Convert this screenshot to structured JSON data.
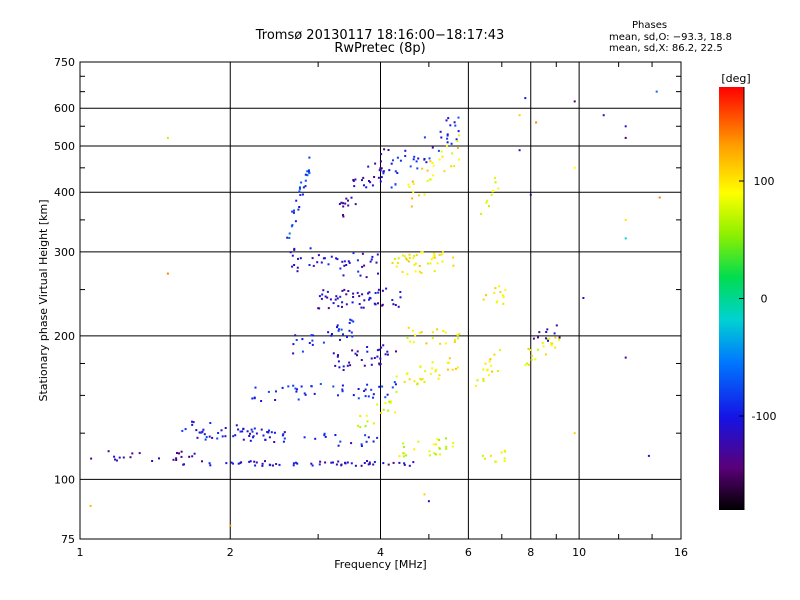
{
  "chart_data": {
    "type": "scatter",
    "title": "Tromsø 20130117 18:16:00−18:17:43",
    "subtitle": "RwPretec (8p)",
    "xlabel": "Frequency [MHz]",
    "ylabel": "Stationary phase Virtual Height [km]",
    "xscale": "log",
    "yscale": "log",
    "xlim": [
      1,
      16
    ],
    "ylim": [
      75,
      750
    ],
    "x_ticks": [
      1,
      2,
      4,
      6,
      8,
      10,
      16
    ],
    "y_ticks": [
      75,
      100,
      200,
      300,
      400,
      500,
      600,
      750
    ],
    "grid": true,
    "colorbar": {
      "label": "[deg]",
      "range": [
        -180,
        180
      ],
      "ticks": [
        100,
        0,
        -100
      ]
    },
    "phase_stats": {
      "heading": "Phases",
      "line_o": "mean, sd,O: −93.3, 18.8",
      "line_x": "mean, sd,X: 86.2, 22.5"
    },
    "traces": [
      {
        "x0": 1.05,
        "x1": 1.7,
        "y": 112,
        "y2": 112,
        "phase": -130,
        "density": 22,
        "spread": 0.03
      },
      {
        "x0": 1.6,
        "x1": 4.7,
        "y": 108,
        "y2": 108,
        "phase": -115,
        "density": 60,
        "spread": 0.012
      },
      {
        "x0": 1.6,
        "x1": 2.4,
        "y": 130,
        "y2": 124,
        "phase": -105,
        "density": 30,
        "spread": 0.035
      },
      {
        "x0": 1.7,
        "x1": 4.0,
        "y": 125,
        "y2": 120,
        "phase": -100,
        "density": 45,
        "spread": 0.03
      },
      {
        "x0": 2.2,
        "x1": 4.3,
        "y": 150,
        "y2": 155,
        "phase": -90,
        "density": 45,
        "spread": 0.04
      },
      {
        "x0": 2.6,
        "x1": 3.6,
        "y": 190,
        "y2": 210,
        "phase": -100,
        "density": 30,
        "spread": 0.05
      },
      {
        "x0": 3.0,
        "x1": 4.5,
        "y": 240,
        "y2": 240,
        "phase": -115,
        "density": 55,
        "spread": 0.05
      },
      {
        "x0": 2.6,
        "x1": 4.0,
        "y": 290,
        "y2": 280,
        "phase": -110,
        "density": 45,
        "spread": 0.06
      },
      {
        "x0": 2.6,
        "x1": 2.9,
        "y": 320,
        "y2": 460,
        "phase": -80,
        "density": 30,
        "spread": 0.06
      },
      {
        "x0": 3.3,
        "x1": 4.2,
        "y": 370,
        "y2": 480,
        "phase": -125,
        "density": 35,
        "spread": 0.07
      },
      {
        "x0": 4.0,
        "x1": 5.8,
        "y": 420,
        "y2": 560,
        "phase": -95,
        "density": 45,
        "spread": 0.07
      },
      {
        "x0": 4.2,
        "x1": 5.6,
        "y": 280,
        "y2": 290,
        "phase": 95,
        "density": 40,
        "spread": 0.05
      },
      {
        "x0": 4.3,
        "x1": 5.8,
        "y": 160,
        "y2": 175,
        "phase": 90,
        "density": 30,
        "spread": 0.05
      },
      {
        "x0": 4.3,
        "x1": 5.6,
        "y": 115,
        "y2": 118,
        "phase": 80,
        "density": 25,
        "spread": 0.04
      },
      {
        "x0": 4.5,
        "x1": 5.8,
        "y": 390,
        "y2": 500,
        "phase": 100,
        "density": 30,
        "spread": 0.07
      },
      {
        "x0": 4.5,
        "x1": 5.8,
        "y": 200,
        "y2": 200,
        "phase": 95,
        "density": 22,
        "spread": 0.04
      },
      {
        "x0": 6.2,
        "x1": 7.0,
        "y": 160,
        "y2": 180,
        "phase": 95,
        "density": 16,
        "spread": 0.05
      },
      {
        "x0": 6.4,
        "x1": 7.2,
        "y": 250,
        "y2": 240,
        "phase": 95,
        "density": 12,
        "spread": 0.06
      },
      {
        "x0": 6.4,
        "x1": 7.2,
        "y": 112,
        "y2": 112,
        "phase": 80,
        "density": 10,
        "spread": 0.03
      },
      {
        "x0": 6.3,
        "x1": 6.9,
        "y": 360,
        "y2": 420,
        "phase": 90,
        "density": 10,
        "spread": 0.05
      },
      {
        "x0": 7.8,
        "x1": 9.3,
        "y": 180,
        "y2": 195,
        "phase": 90,
        "density": 22,
        "spread": 0.05
      },
      {
        "x0": 7.8,
        "x1": 9.3,
        "y": 200,
        "y2": 205,
        "phase": -115,
        "density": 10,
        "spread": 0.04
      },
      {
        "x0": 3.2,
        "x1": 4.3,
        "y": 175,
        "y2": 185,
        "phase": -120,
        "density": 35,
        "spread": 0.05
      },
      {
        "x0": 3.6,
        "x1": 4.4,
        "y": 135,
        "y2": 140,
        "phase": 80,
        "density": 16,
        "spread": 0.05
      }
    ],
    "scattered_points": [
      {
        "x": 1.05,
        "y": 88,
        "phase": 120
      },
      {
        "x": 1.5,
        "y": 520,
        "phase": 70
      },
      {
        "x": 1.5,
        "y": 270,
        "phase": 140
      },
      {
        "x": 2.0,
        "y": 80,
        "phase": 130
      },
      {
        "x": 4.9,
        "y": 93,
        "phase": 110
      },
      {
        "x": 5.0,
        "y": 90,
        "phase": -115
      },
      {
        "x": 7.6,
        "y": 490,
        "phase": -120
      },
      {
        "x": 7.6,
        "y": 580,
        "phase": 110
      },
      {
        "x": 8.2,
        "y": 560,
        "phase": 140
      },
      {
        "x": 9.8,
        "y": 620,
        "phase": -150
      },
      {
        "x": 9.8,
        "y": 450,
        "phase": 90
      },
      {
        "x": 9.8,
        "y": 125,
        "phase": 110
      },
      {
        "x": 10.2,
        "y": 240,
        "phase": -110
      },
      {
        "x": 11.2,
        "y": 580,
        "phase": -110
      },
      {
        "x": 12.4,
        "y": 550,
        "phase": -115
      },
      {
        "x": 12.4,
        "y": 520,
        "phase": -150
      },
      {
        "x": 12.4,
        "y": 350,
        "phase": 100
      },
      {
        "x": 12.4,
        "y": 320,
        "phase": -20
      },
      {
        "x": 12.4,
        "y": 180,
        "phase": -140
      },
      {
        "x": 13.8,
        "y": 112,
        "phase": -115
      },
      {
        "x": 14.5,
        "y": 390,
        "phase": 140
      },
      {
        "x": 14.3,
        "y": 650,
        "phase": -60
      },
      {
        "x": 7.8,
        "y": 630,
        "phase": -100
      },
      {
        "x": 8.0,
        "y": 395,
        "phase": -120
      }
    ]
  }
}
